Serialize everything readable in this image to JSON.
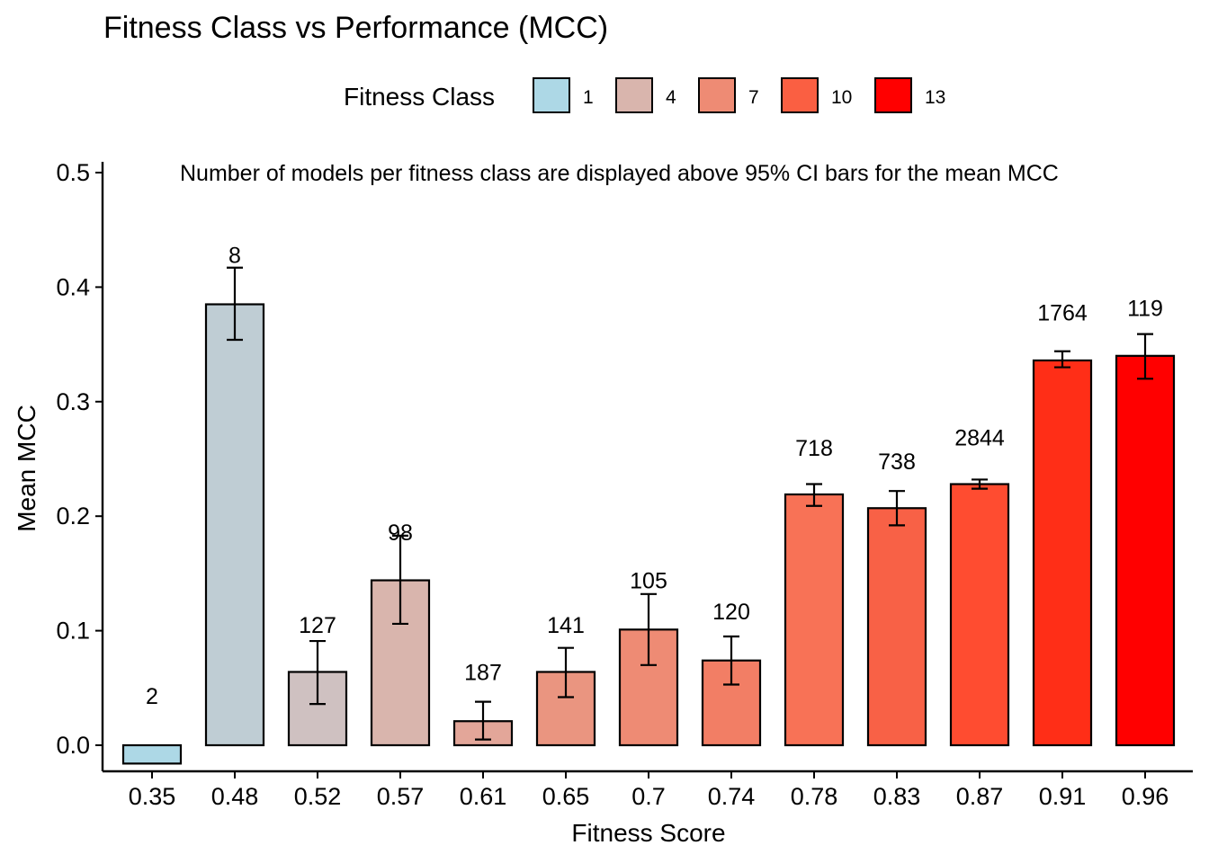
{
  "chart_data": {
    "type": "bar",
    "title": "Fitness Class vs Performance (MCC)",
    "annotation": "Number of models per fitness class are displayed above 95% CI bars for the mean MCC",
    "xlabel": "Fitness Score",
    "ylabel": "Mean MCC",
    "ylim": [
      -0.02,
      0.5
    ],
    "yticks": [
      0.0,
      0.1,
      0.2,
      0.3,
      0.4,
      0.5
    ],
    "ytick_labels": [
      "0.0",
      "0.1",
      "0.2",
      "0.3",
      "0.4",
      "0.5"
    ],
    "categories": [
      "0.35",
      "0.48",
      "0.52",
      "0.57",
      "0.61",
      "0.65",
      "0.7",
      "0.74",
      "0.78",
      "0.83",
      "0.87",
      "0.91",
      "0.96"
    ],
    "values": [
      -0.016,
      0.385,
      0.064,
      0.144,
      0.021,
      0.064,
      0.101,
      0.074,
      0.219,
      0.207,
      0.228,
      0.336,
      0.34
    ],
    "ci_lower": [
      -0.016,
      0.354,
      0.036,
      0.106,
      0.005,
      0.042,
      0.07,
      0.053,
      0.209,
      0.192,
      0.224,
      0.33,
      0.32
    ],
    "ci_upper": [
      -0.016,
      0.417,
      0.091,
      0.183,
      0.038,
      0.085,
      0.132,
      0.095,
      0.228,
      0.222,
      0.232,
      0.344,
      0.359
    ],
    "counts": [
      "2",
      "8",
      "127",
      "98",
      "187",
      "141",
      "105",
      "120",
      "718",
      "738",
      "2844",
      "1764",
      "119"
    ],
    "count_label_y": [
      0.043,
      0.428,
      0.105,
      0.186,
      0.064,
      0.105,
      0.144,
      0.117,
      0.26,
      0.248,
      0.269,
      0.378,
      0.382
    ],
    "bar_colors": [
      "#ADD8E6",
      "#BFCDD4",
      "#CFC1C1",
      "#D9B5AD",
      "#E3A699",
      "#EA9580",
      "#EE8B74",
      "#F27E65",
      "#F87256",
      "#F86146",
      "#FF4C30",
      "#FF2E17",
      "#FF0000"
    ],
    "legend": {
      "title": "Fitness Class",
      "placement": "top",
      "entries": [
        {
          "label": "1",
          "color": "#ADD8E6"
        },
        {
          "label": "4",
          "color": "#D9B5AD"
        },
        {
          "label": "7",
          "color": "#EE8B74"
        },
        {
          "label": "10",
          "color": "#FA5F42"
        },
        {
          "label": "13",
          "color": "#FF0000"
        }
      ]
    },
    "grid": false
  }
}
